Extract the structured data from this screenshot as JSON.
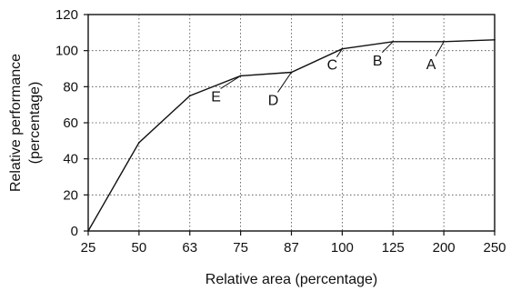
{
  "chart_data": {
    "type": "line",
    "x": [
      "25",
      "50",
      "63",
      "75",
      "87",
      "100",
      "125",
      "200",
      "250"
    ],
    "ylim": [
      0,
      120
    ],
    "yticks": [
      0,
      20,
      40,
      60,
      80,
      100,
      120
    ],
    "xlabel": "Relative area (percentage)",
    "ylabel_lines": [
      "Relative performance",
      "(percentage)"
    ],
    "series": [
      {
        "values": [
          0,
          49,
          75,
          86,
          88,
          101,
          105,
          105,
          106
        ]
      }
    ],
    "annotations": [
      {
        "label": "E",
        "target_x": "75",
        "target_y": 86
      },
      {
        "label": "D",
        "target_x": "87",
        "target_y": 88
      },
      {
        "label": "C",
        "target_x": "100",
        "target_y": 101
      },
      {
        "label": "B",
        "target_x": "125",
        "target_y": 105
      },
      {
        "label": "A",
        "target_x": "200",
        "target_y": 105
      }
    ],
    "grid": true,
    "grid_style": "dotted",
    "line_color": "#111111",
    "grid_color": "#444444"
  }
}
